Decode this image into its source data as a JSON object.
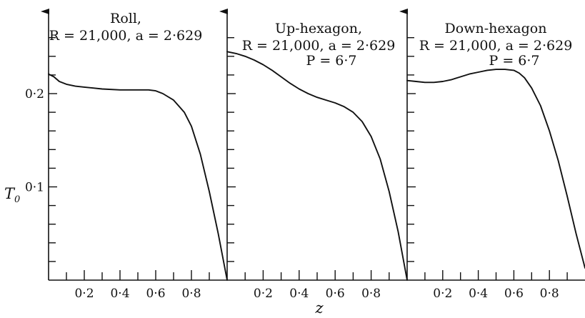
{
  "chart_data": [
    {
      "type": "line",
      "title_lines": [
        "Roll,",
        "R = 21,000,  a = 2·629"
      ],
      "xlabel": "",
      "ylabel": "T",
      "ylabel_sub": "0",
      "x_ticks": [
        "0·2",
        "0·4",
        "0·6",
        "0·8"
      ],
      "y_ticks": [
        "0·1",
        "0·2"
      ],
      "xlim": [
        0,
        1
      ],
      "ylim": [
        0,
        0.27
      ],
      "series": [
        {
          "x": [
            0,
            0.03,
            0.06,
            0.1,
            0.15,
            0.2,
            0.3,
            0.4,
            0.5,
            0.56,
            0.6,
            0.64,
            0.7,
            0.76,
            0.8,
            0.85,
            0.9,
            0.95,
            1.0
          ],
          "y": [
            0.221,
            0.218,
            0.213,
            0.21,
            0.208,
            0.207,
            0.205,
            0.204,
            0.204,
            0.204,
            0.203,
            0.2,
            0.193,
            0.18,
            0.165,
            0.135,
            0.095,
            0.05,
            0.0
          ]
        }
      ]
    },
    {
      "type": "line",
      "title_lines": [
        "Up-hexagon,",
        "R = 21,000,  a = 2·629",
        "P = 6·7"
      ],
      "xlabel": "z",
      "x_ticks": [
        "0·2",
        "0·4",
        "0·6",
        "0·8"
      ],
      "xlim": [
        0,
        1
      ],
      "ylim": [
        0,
        0.27
      ],
      "series": [
        {
          "x": [
            0,
            0.05,
            0.1,
            0.15,
            0.2,
            0.25,
            0.3,
            0.35,
            0.4,
            0.45,
            0.5,
            0.55,
            0.6,
            0.65,
            0.7,
            0.75,
            0.8,
            0.85,
            0.9,
            0.95,
            1.0
          ],
          "y": [
            0.245,
            0.243,
            0.24,
            0.236,
            0.231,
            0.225,
            0.218,
            0.211,
            0.205,
            0.2,
            0.196,
            0.193,
            0.19,
            0.186,
            0.18,
            0.17,
            0.154,
            0.13,
            0.095,
            0.052,
            0.0
          ]
        }
      ]
    },
    {
      "type": "line",
      "title_lines": [
        "Down-hexagon",
        "R = 21,000,  a = 2·629",
        "P = 6·7"
      ],
      "xlabel": "",
      "x_ticks": [
        "0·2",
        "0·4",
        "0·6",
        "0·8"
      ],
      "xlim": [
        0,
        1
      ],
      "ylim": [
        0,
        0.27
      ],
      "series": [
        {
          "x": [
            0,
            0.05,
            0.1,
            0.15,
            0.2,
            0.25,
            0.3,
            0.35,
            0.4,
            0.45,
            0.5,
            0.55,
            0.6,
            0.63,
            0.66,
            0.7,
            0.75,
            0.8,
            0.85,
            0.9,
            0.95,
            1.0
          ],
          "y": [
            0.214,
            0.213,
            0.212,
            0.212,
            0.213,
            0.215,
            0.218,
            0.221,
            0.223,
            0.225,
            0.226,
            0.226,
            0.225,
            0.222,
            0.217,
            0.206,
            0.187,
            0.16,
            0.128,
            0.09,
            0.05,
            0.013
          ]
        }
      ]
    }
  ]
}
